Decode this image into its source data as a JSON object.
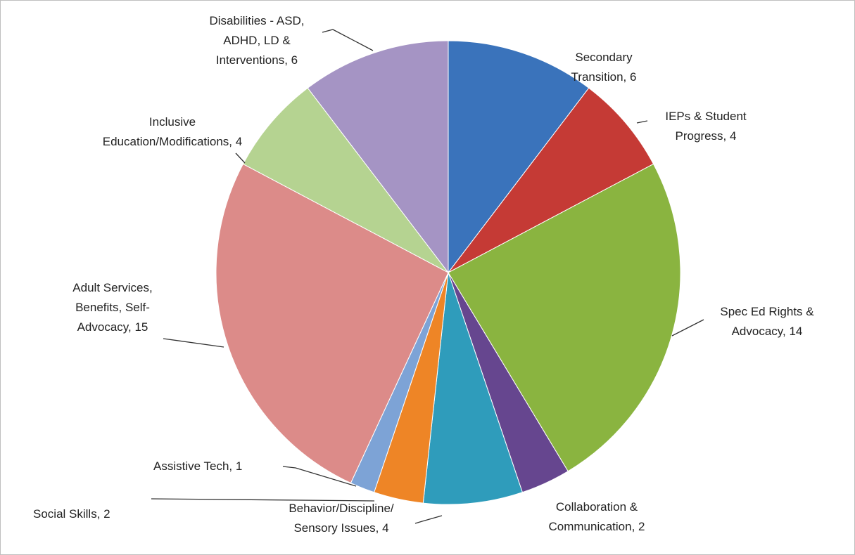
{
  "chart_data": {
    "type": "pie",
    "categories": [
      "Secondary Transition, 6",
      "IEPs & Student Progress, 4",
      "Spec Ed Rights & Advocacy, 14",
      "Collaboration & Communication, 2",
      "Behavior/Discipline/ Sensory Issues, 4",
      "Social Skills, 2",
      "Assistive Tech, 1",
      "Adult Services, Benefits, Self- Advocacy, 15",
      "Inclusive Education/Modifications, 4",
      "Disabilities - ASD, ADHD, LD & Interventions, 6"
    ],
    "values": [
      6,
      4,
      14,
      2,
      4,
      2,
      1,
      15,
      4,
      6
    ],
    "colors": [
      "#3a73bb",
      "#c53a35",
      "#8ab440",
      "#66468f",
      "#2f9cbb",
      "#ee8526",
      "#7da3d6",
      "#dc8b89",
      "#b5d391",
      "#a594c4"
    ]
  }
}
